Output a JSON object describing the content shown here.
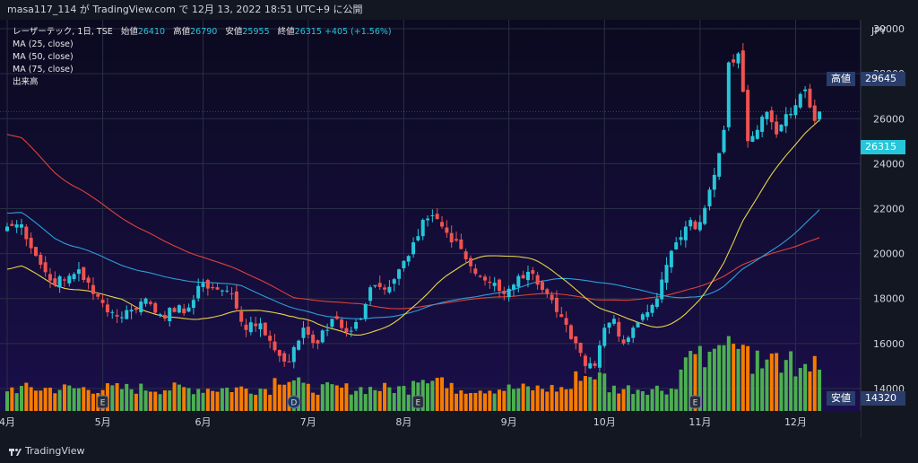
{
  "header": {
    "caption": "masa117_114 が TradingView.com で 12月 13, 2022 18:51 UTC+9 に公開"
  },
  "footer": {
    "brand": "TradingView"
  },
  "chart_data": {
    "type": "candlestick",
    "symbol_line": {
      "name": "レーザーテック, 1日, TSE",
      "open_label": "始値",
      "open": "26410",
      "high_label": "高値",
      "high": "26790",
      "low_label": "安値",
      "low": "25955",
      "close_label": "終値",
      "close": "26315",
      "change": "+405 (+1.56%)"
    },
    "indicators": [
      "MA (25, close)",
      "MA (50, close)",
      "MA (75, close)",
      "出来高"
    ],
    "currency": "JPY",
    "y_ticks": [
      "14000",
      "16000",
      "18000",
      "20000",
      "22000",
      "24000",
      "26000",
      "28000",
      "30000"
    ],
    "y_range": [
      14000,
      30000
    ],
    "x_month_labels": [
      {
        "label": "4月",
        "day": 0
      },
      {
        "label": "5月",
        "day": 20
      },
      {
        "label": "6月",
        "day": 41
      },
      {
        "label": "7月",
        "day": 63
      },
      {
        "label": "8月",
        "day": 83
      },
      {
        "label": "9月",
        "day": 105
      },
      {
        "label": "10月",
        "day": 125
      },
      {
        "label": "11月",
        "day": 145
      },
      {
        "label": "12月",
        "day": 165
      }
    ],
    "price_tag": {
      "value": "26315",
      "color": "#26c6da"
    },
    "high_tag": {
      "label": "高値",
      "value": "29645"
    },
    "low_tag": {
      "label": "安値",
      "value": "14320"
    },
    "earnings_markers": [
      {
        "day": 20,
        "letter": "E"
      },
      {
        "day": 60,
        "letter": "D"
      },
      {
        "day": 86,
        "letter": "E"
      },
      {
        "day": 144,
        "letter": "E"
      }
    ],
    "colors": {
      "up": "#26c6da",
      "down": "#ef5350",
      "ma25": "#e6d34a",
      "ma50": "#2b9fd9",
      "ma75": "#e0413a",
      "vol_up": "#4caf50",
      "vol_down": "#f57c00"
    },
    "close_anchors": [
      [
        0,
        21200
      ],
      [
        3,
        21300
      ],
      [
        6,
        19900
      ],
      [
        9,
        18800
      ],
      [
        12,
        18800
      ],
      [
        15,
        19300
      ],
      [
        18,
        18200
      ],
      [
        20,
        17800
      ],
      [
        23,
        17200
      ],
      [
        26,
        17500
      ],
      [
        29,
        18000
      ],
      [
        32,
        17300
      ],
      [
        35,
        17400
      ],
      [
        38,
        17600
      ],
      [
        41,
        18700
      ],
      [
        44,
        18400
      ],
      [
        47,
        18200
      ],
      [
        50,
        16600
      ],
      [
        53,
        16900
      ],
      [
        56,
        15700
      ],
      [
        59,
        15200
      ],
      [
        62,
        16700
      ],
      [
        65,
        16000
      ],
      [
        68,
        17100
      ],
      [
        71,
        16500
      ],
      [
        74,
        17100
      ],
      [
        76,
        18500
      ],
      [
        79,
        18400
      ],
      [
        82,
        19300
      ],
      [
        85,
        20500
      ],
      [
        87,
        21500
      ],
      [
        89,
        21700
      ],
      [
        91,
        21200
      ],
      [
        93,
        20500
      ],
      [
        95,
        20200
      ],
      [
        98,
        19100
      ],
      [
        101,
        18700
      ],
      [
        104,
        18200
      ],
      [
        107,
        19000
      ],
      [
        110,
        19100
      ],
      [
        113,
        18200
      ],
      [
        115,
        17400
      ],
      [
        118,
        16200
      ],
      [
        121,
        15000
      ],
      [
        123,
        15000
      ],
      [
        125,
        16700
      ],
      [
        127,
        17100
      ],
      [
        129,
        16000
      ],
      [
        131,
        16700
      ],
      [
        133,
        17300
      ],
      [
        136,
        18000
      ],
      [
        138,
        19500
      ],
      [
        140,
        20500
      ],
      [
        142,
        21200
      ],
      [
        145,
        21400
      ],
      [
        148,
        23500
      ],
      [
        150,
        25500
      ],
      [
        151,
        28500
      ],
      [
        153,
        28900
      ],
      [
        155,
        25000
      ],
      [
        157,
        25500
      ],
      [
        159,
        26300
      ],
      [
        161,
        25300
      ],
      [
        163,
        26200
      ],
      [
        165,
        26600
      ],
      [
        167,
        27300
      ],
      [
        168,
        26500
      ],
      [
        169,
        25900
      ],
      [
        170,
        26315
      ]
    ],
    "ma25_end": 26000,
    "ma50_end": 22200,
    "ma75_end": 20900,
    "volume_level_note": "volume bars rise strongly in November"
  }
}
